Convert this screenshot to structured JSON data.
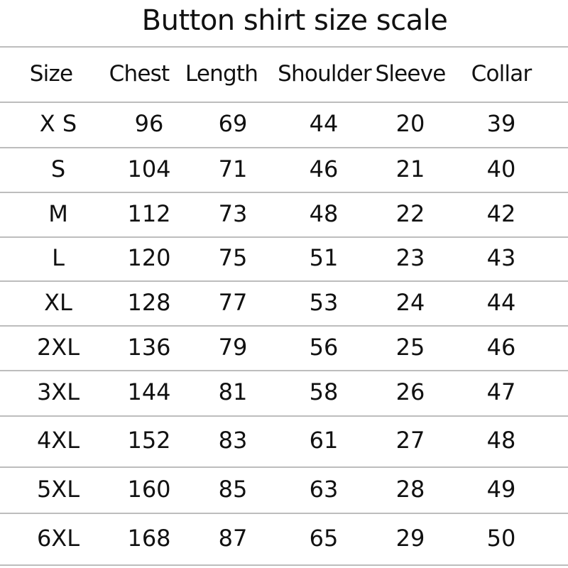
{
  "title": "Button shirt size scale",
  "columns": [
    "Size",
    "Chest",
    "Length",
    "Shoulder",
    "Sleeve",
    "Collar"
  ],
  "rows": [
    [
      "X S",
      "96",
      "69",
      "44",
      "20",
      "39"
    ],
    [
      "S",
      "104",
      "71",
      "46",
      "21",
      "40"
    ],
    [
      "M",
      "112",
      "73",
      "48",
      "22",
      "42"
    ],
    [
      "L",
      "120",
      "75",
      "51",
      "23",
      "43"
    ],
    [
      "XL",
      "128",
      "77",
      "53",
      "24",
      "44"
    ],
    [
      "2XL",
      "136",
      "79",
      "56",
      "25",
      "46"
    ],
    [
      "3XL",
      "144",
      "81",
      "58",
      "26",
      "47"
    ],
    [
      "4XL",
      "152",
      "83",
      "61",
      "27",
      "48"
    ],
    [
      "5XL",
      "160",
      "85",
      "63",
      "28",
      "49"
    ],
    [
      "6XL",
      "168",
      "87",
      "65",
      "29",
      "50"
    ]
  ]
}
